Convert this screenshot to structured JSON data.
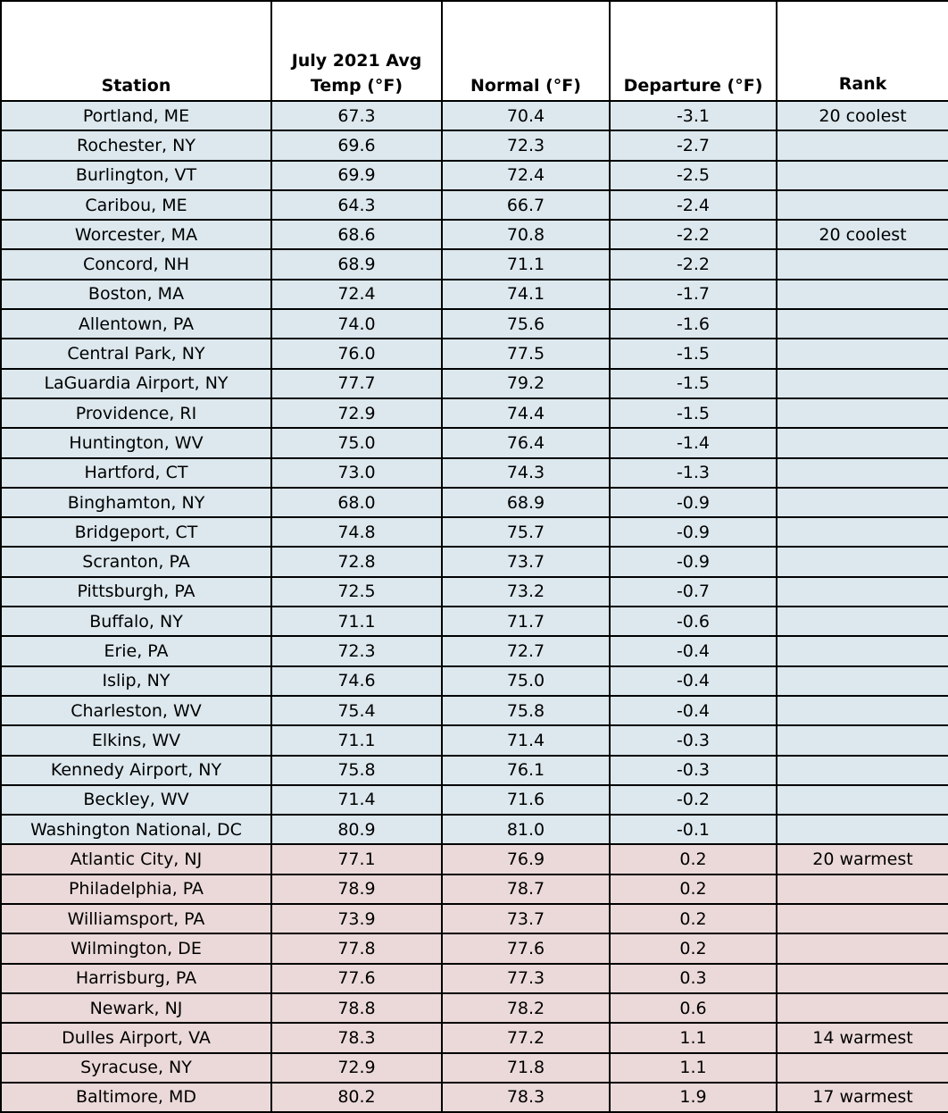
{
  "table": {
    "header": [
      "Station",
      "July 2021 Avg Temp (°F)",
      "Normal (°F)",
      "Departure (°F)",
      "Rank"
    ],
    "rows": [
      {
        "station": "Portland, ME",
        "avg": "67.3",
        "normal": "70.4",
        "departure": "-3.1",
        "rank": "20 coolest"
      },
      {
        "station": "Rochester, NY",
        "avg": "69.6",
        "normal": "72.3",
        "departure": "-2.7"
      },
      {
        "station": "Burlington, VT",
        "avg": "69.9",
        "normal": "72.4",
        "departure": "-2.5"
      },
      {
        "station": "Caribou, ME",
        "avg": "64.3",
        "normal": "66.7",
        "departure": "-2.4"
      },
      {
        "station": "Worcester, MA",
        "avg": "68.6",
        "normal": "70.8",
        "departure": "-2.2",
        "rank": "20 coolest"
      },
      {
        "station": "Concord, NH",
        "avg": "68.9",
        "normal": "71.1",
        "departure": "-2.2"
      },
      {
        "station": "Boston, MA",
        "avg": "72.4",
        "normal": "74.1",
        "departure": "-1.7"
      },
      {
        "station": "Allentown, PA",
        "avg": "74.0",
        "normal": "75.6",
        "departure": "-1.6"
      },
      {
        "station": "Central Park, NY",
        "avg": "76.0",
        "normal": "77.5",
        "departure": "-1.5"
      },
      {
        "station": "LaGuardia Airport, NY",
        "avg": "77.7",
        "normal": "79.2",
        "departure": "-1.5"
      },
      {
        "station": "Providence, RI",
        "avg": "72.9",
        "normal": "74.4",
        "departure": "-1.5"
      },
      {
        "station": "Huntington, WV",
        "avg": "75.0",
        "normal": "76.4",
        "departure": "-1.4"
      },
      {
        "station": "Hartford, CT",
        "avg": "73.0",
        "normal": "74.3",
        "departure": "-1.3"
      },
      {
        "station": "Binghamton, NY",
        "avg": "68.0",
        "normal": "68.9",
        "departure": "-0.9"
      },
      {
        "station": "Bridgeport, CT",
        "avg": "74.8",
        "normal": "75.7",
        "departure": "-0.9"
      },
      {
        "station": "Scranton, PA",
        "avg": "72.8",
        "normal": "73.7",
        "departure": "-0.9"
      },
      {
        "station": "Pittsburgh, PA",
        "avg": "72.5",
        "normal": "73.2",
        "departure": "-0.7"
      },
      {
        "station": "Buffalo, NY",
        "avg": "71.1",
        "normal": "71.7",
        "departure": "-0.6"
      },
      {
        "station": "Erie, PA",
        "avg": "72.3",
        "normal": "72.7",
        "departure": "-0.4"
      },
      {
        "station": "Islip, NY",
        "avg": "74.6",
        "normal": "75.0",
        "departure": "-0.4"
      },
      {
        "station": "Charleston, WV",
        "avg": "75.4",
        "normal": "75.8",
        "departure": "-0.4"
      },
      {
        "station": "Elkins, WV",
        "avg": "71.1",
        "normal": "71.4",
        "departure": "-0.3"
      },
      {
        "station": "Kennedy Airport, NY",
        "avg": "75.8",
        "normal": "76.1",
        "departure": "-0.3"
      },
      {
        "station": "Beckley, WV",
        "avg": "71.4",
        "normal": "71.6",
        "departure": "-0.2"
      },
      {
        "station": "Washington National, DC",
        "avg": "80.9",
        "normal": "81.0",
        "departure": "-0.1"
      },
      {
        "station": "Atlantic City, NJ",
        "avg": "77.1",
        "normal": "76.9",
        "departure": "0.2",
        "rank": "20 warmest"
      },
      {
        "station": "Philadelphia, PA",
        "avg": "78.9",
        "normal": "78.7",
        "departure": "0.2"
      },
      {
        "station": "Williamsport, PA",
        "avg": "73.9",
        "normal": "73.7",
        "departure": "0.2"
      },
      {
        "station": "Wilmington, DE",
        "avg": "77.8",
        "normal": "77.6",
        "departure": "0.2"
      },
      {
        "station": "Harrisburg, PA",
        "avg": "77.6",
        "normal": "77.3",
        "departure": "0.3"
      },
      {
        "station": "Newark, NJ",
        "avg": "78.8",
        "normal": "78.2",
        "departure": "0.6"
      },
      {
        "station": "Dulles Airport, VA",
        "avg": "78.3",
        "normal": "77.2",
        "departure": "1.1",
        "rank": "14 warmest"
      },
      {
        "station": "Syracuse, NY",
        "avg": "72.9",
        "normal": "71.8",
        "departure": "1.1"
      },
      {
        "station": "Baltimore, MD",
        "avg": "80.2",
        "normal": "78.3",
        "departure": "1.9",
        "rank": "17 warmest"
      }
    ]
  }
}
